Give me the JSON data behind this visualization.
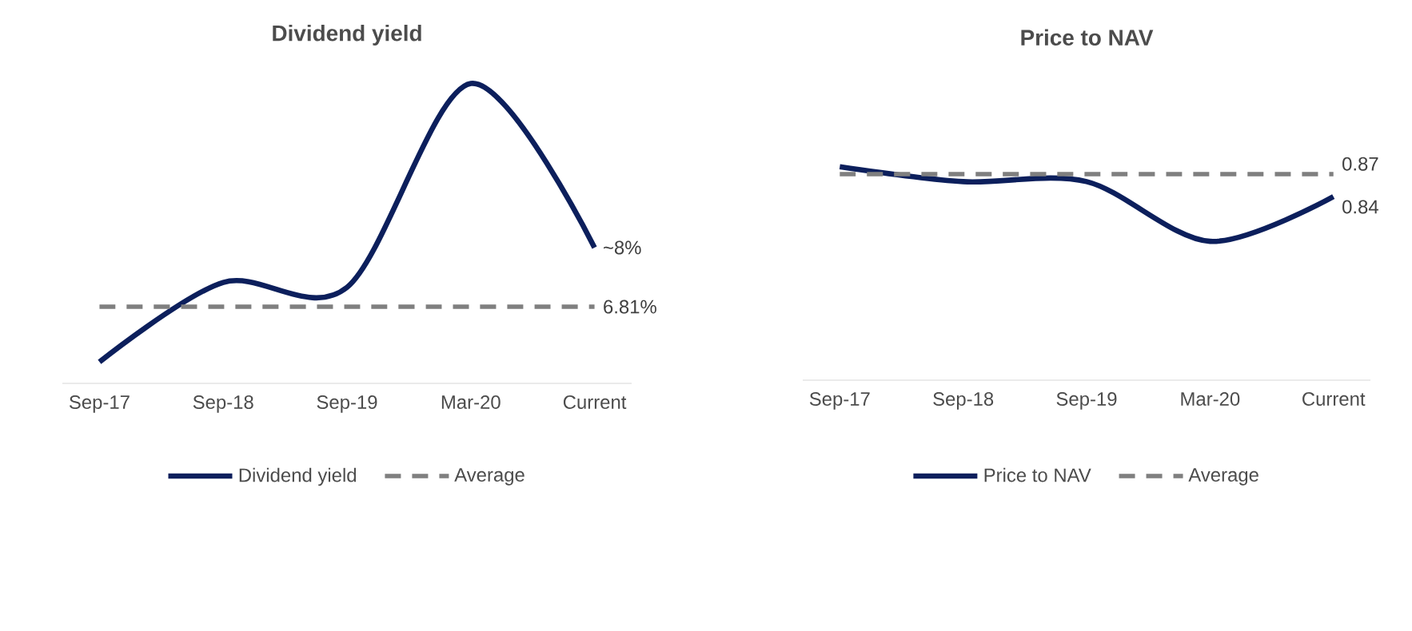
{
  "chart_data": [
    {
      "type": "line",
      "title": "Dividend yield",
      "categories": [
        "Sep-17",
        "Sep-18",
        "Sep-19",
        "Mar-20",
        "Current"
      ],
      "tick_labels": "x",
      "legend": "bottom",
      "marker": "none",
      "grid": false,
      "series": [
        {
          "name": "Dividend yield",
          "color": "#0c1f5c",
          "line_style": "solid",
          "values": [
            5.7,
            7.3,
            7.2,
            11.3,
            8
          ],
          "value_labels": [
            null,
            null,
            null,
            null,
            "~8%"
          ]
        },
        {
          "name": "Average",
          "color": "#7f7f7f",
          "line_style": "dashed",
          "values": [
            6.81,
            6.81,
            6.81,
            6.81,
            6.81
          ],
          "value_labels": [
            null,
            null,
            null,
            null,
            "6.81%"
          ]
        }
      ]
    },
    {
      "type": "line",
      "title": "Price to NAV",
      "categories": [
        "Sep-17",
        "Sep-18",
        "Sep-19",
        "Mar-20",
        "Current"
      ],
      "tick_labels": "x",
      "legend": "bottom",
      "marker": "none",
      "grid": false,
      "series": [
        {
          "name": "Price to NAV",
          "color": "#0c1f5c",
          "line_style": "solid",
          "values": [
            0.88,
            0.86,
            0.86,
            0.78,
            0.84
          ],
          "value_labels": [
            null,
            null,
            null,
            null,
            "0.84"
          ]
        },
        {
          "name": "Average",
          "color": "#7f7f7f",
          "line_style": "dashed",
          "values": [
            0.87,
            0.87,
            0.87,
            0.87,
            0.87
          ],
          "value_labels": [
            null,
            null,
            null,
            null,
            "0.87"
          ]
        }
      ]
    }
  ]
}
